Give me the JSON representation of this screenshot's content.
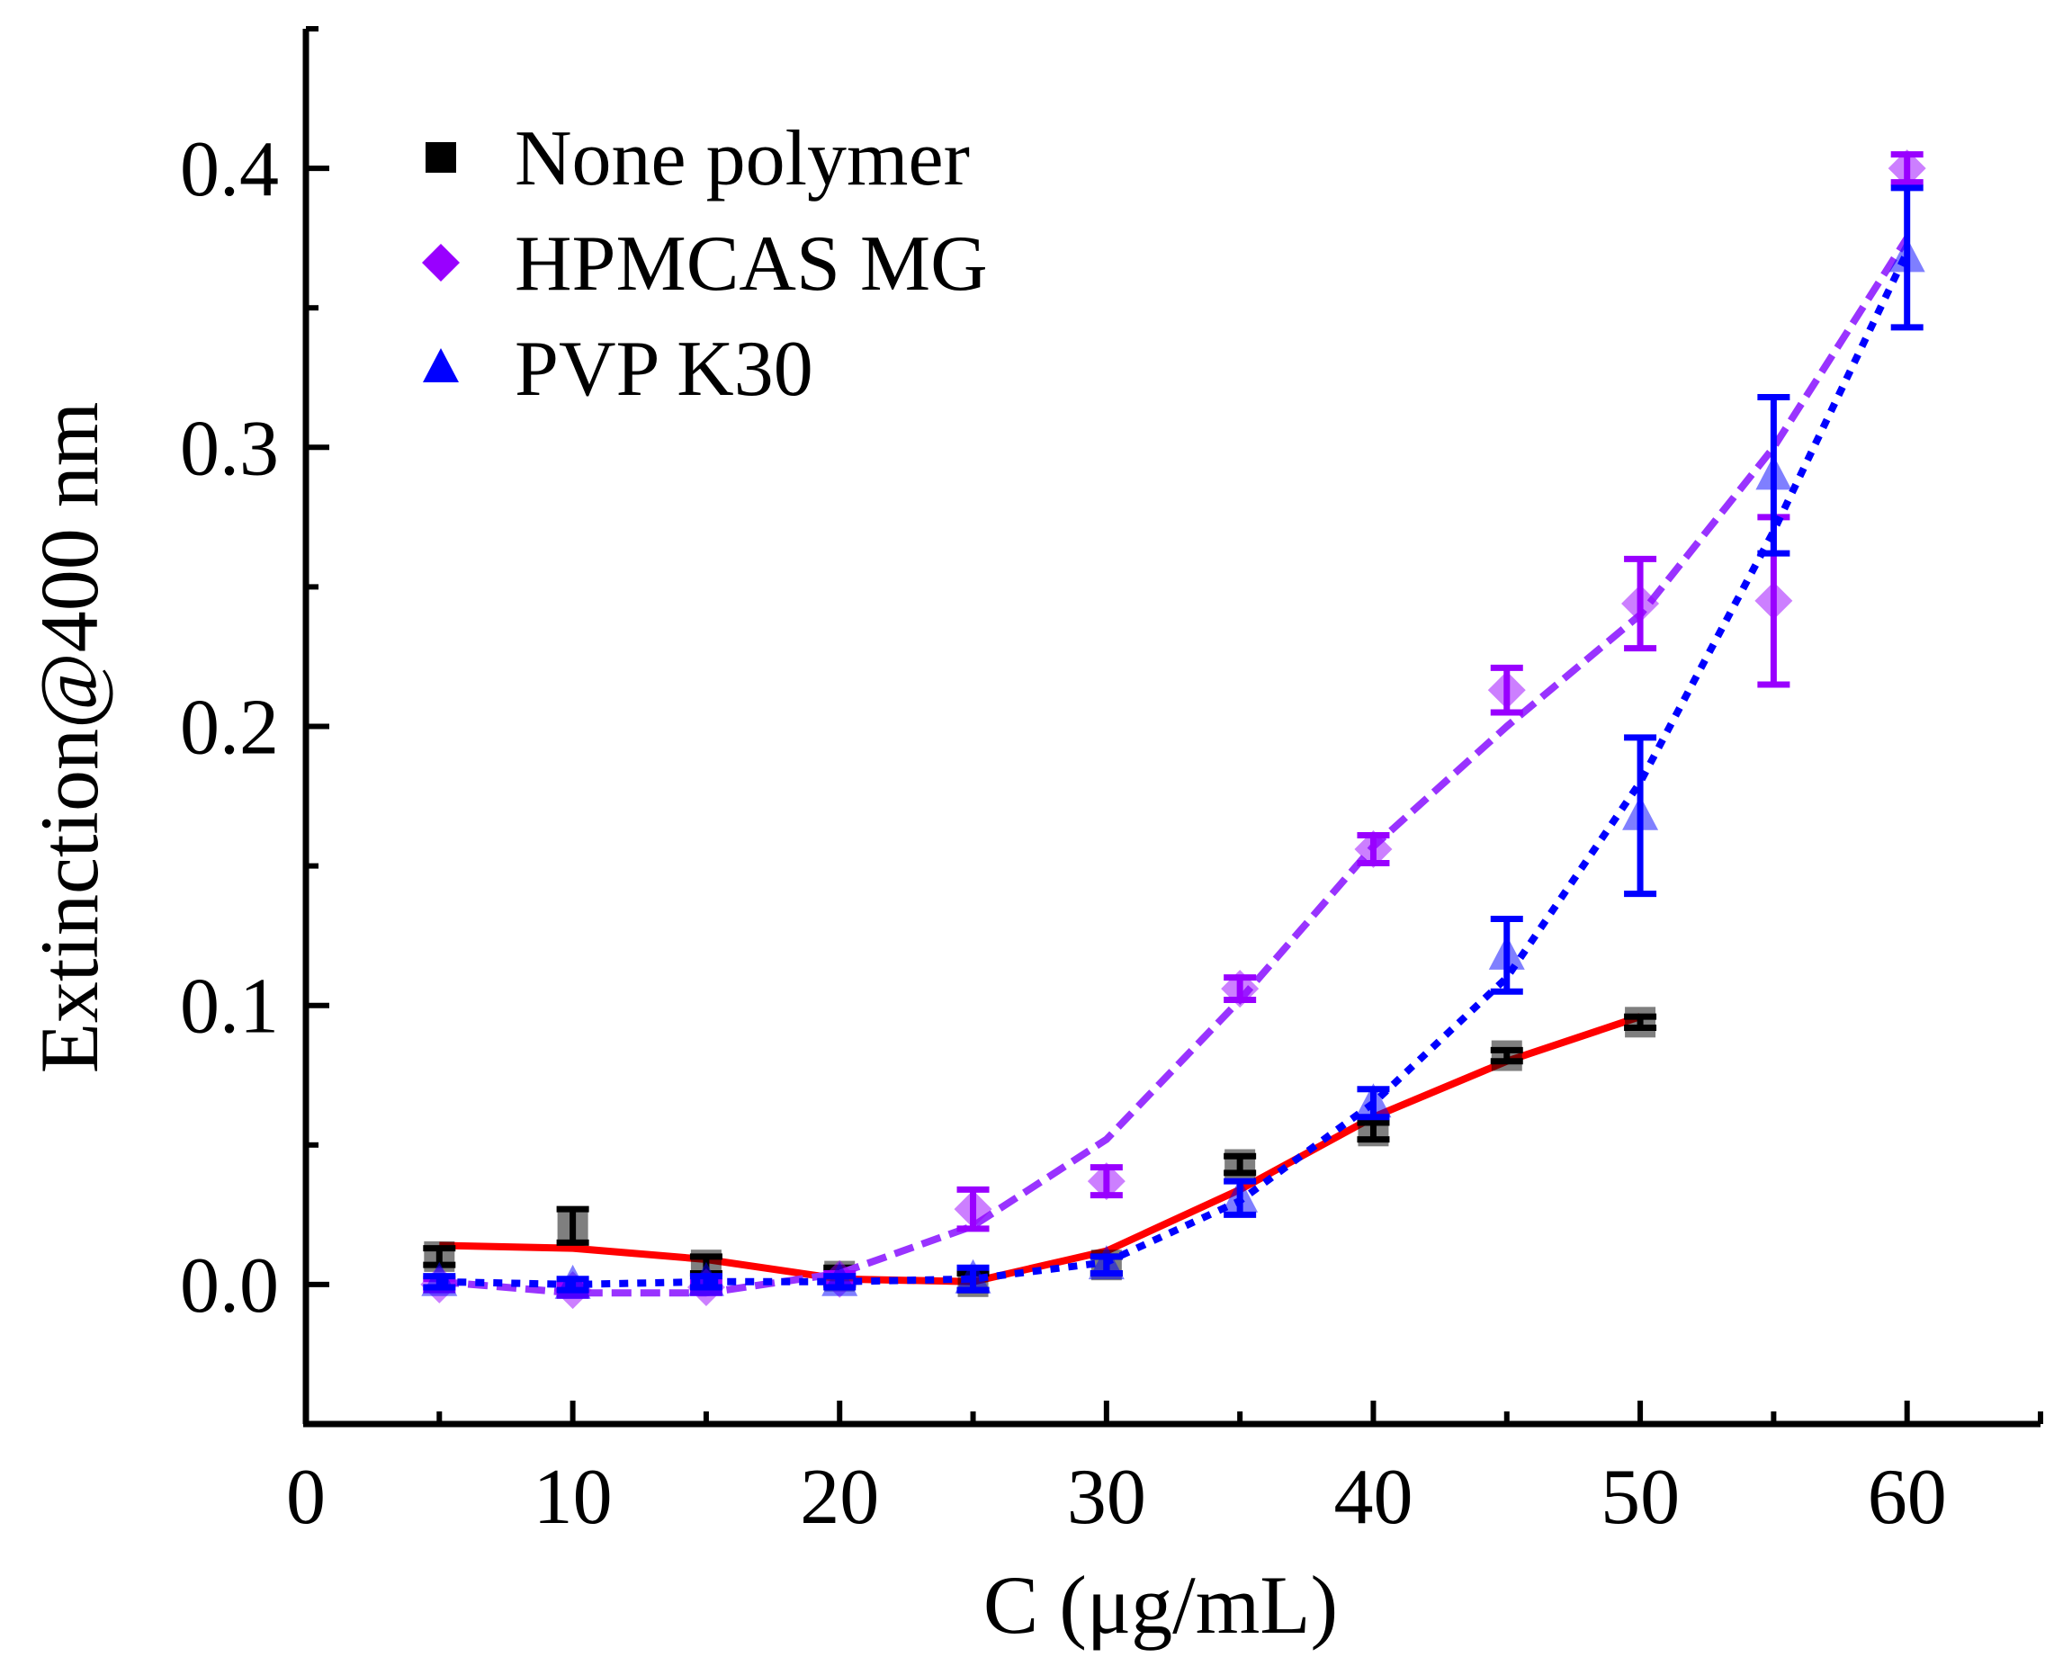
{
  "chart_data": {
    "type": "line",
    "xlabel": "C (μg/mL)",
    "ylabel": "Extinction@400 nm",
    "xlim": [
      0,
      65
    ],
    "ylim": [
      -0.05,
      0.45
    ],
    "x_ticks": [
      0,
      10,
      20,
      30,
      40,
      50,
      60
    ],
    "x_tick_labels": [
      "0",
      "10",
      "20",
      "30",
      "40",
      "50",
      "60"
    ],
    "y_ticks": [
      0.0,
      0.1,
      0.2,
      0.3,
      0.4
    ],
    "y_tick_labels": [
      "0.0",
      "0.1",
      "0.2",
      "0.3",
      "0.4"
    ],
    "legend_position": "top-left",
    "series": [
      {
        "name": "None polymer",
        "marker": "square",
        "marker_color": "#000000",
        "fit_line_color": "#ff0000",
        "fit_line_style": "solid",
        "x": [
          5,
          10,
          15,
          20,
          25,
          30,
          35,
          40,
          45,
          50
        ],
        "y": [
          0.01,
          0.021,
          0.007,
          0.003,
          0.001,
          0.007,
          0.043,
          0.055,
          0.082,
          0.094
        ],
        "err": [
          0.003,
          0.006,
          0.003,
          0.003,
          0.003,
          0.003,
          0.003,
          0.003,
          0.002,
          0.002
        ],
        "fit_x": [
          5,
          10,
          15,
          20,
          25,
          30,
          35,
          40,
          45,
          50
        ],
        "fit_y": [
          0.014,
          0.013,
          0.009,
          0.002,
          0.001,
          0.012,
          0.034,
          0.06,
          0.08,
          0.096
        ]
      },
      {
        "name": "HPMCAS MG",
        "marker": "diamond",
        "marker_color": "#9900ff",
        "fit_line_color": "#9933ff",
        "fit_line_style": "dashed",
        "x": [
          5,
          10,
          15,
          20,
          25,
          30,
          35,
          40,
          45,
          50,
          55,
          60
        ],
        "y": [
          0.0,
          -0.002,
          -0.001,
          0.002,
          0.027,
          0.037,
          0.106,
          0.156,
          0.213,
          0.244,
          0.245,
          0.4
        ],
        "err": [
          0.002,
          0.002,
          0.002,
          0.002,
          0.007,
          0.005,
          0.004,
          0.005,
          0.008,
          0.016,
          0.03,
          0.005
        ],
        "fit_x": [
          5,
          10,
          15,
          20,
          25,
          30,
          35,
          40,
          45,
          50,
          55,
          60
        ],
        "fit_y": [
          0.001,
          -0.003,
          -0.003,
          0.004,
          0.021,
          0.052,
          0.102,
          0.157,
          0.2,
          0.24,
          0.3,
          0.375
        ]
      },
      {
        "name": "PVP K30",
        "marker": "triangle",
        "marker_color": "#0000ff",
        "fit_line_color": "#0000ff",
        "fit_line_style": "dotted",
        "x": [
          5,
          10,
          15,
          20,
          25,
          30,
          35,
          40,
          45,
          50,
          55,
          60
        ],
        "y": [
          0.001,
          0.0,
          0.001,
          0.001,
          0.002,
          0.007,
          0.031,
          0.065,
          0.118,
          0.168,
          0.29,
          0.368
        ],
        "err": [
          0.002,
          0.002,
          0.002,
          0.002,
          0.004,
          0.003,
          0.006,
          0.005,
          0.013,
          0.028,
          0.028,
          0.025
        ],
        "fit_x": [
          5,
          10,
          15,
          20,
          25,
          30,
          35,
          40,
          45,
          50,
          55,
          60
        ],
        "fit_y": [
          0.001,
          0.0,
          0.001,
          0.001,
          0.002,
          0.008,
          0.03,
          0.065,
          0.11,
          0.18,
          0.27,
          0.37
        ]
      }
    ]
  }
}
